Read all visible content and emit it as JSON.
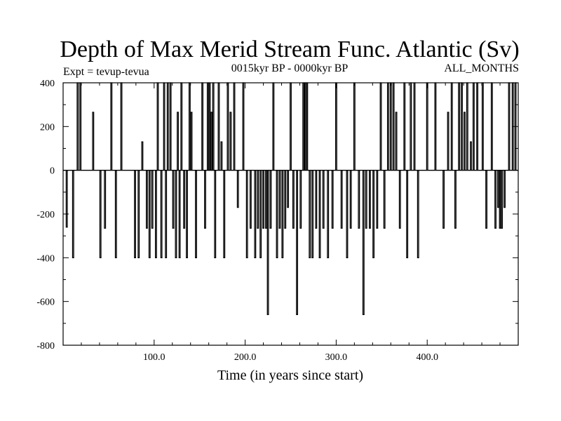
{
  "chart_data": {
    "type": "line",
    "title": "Depth of Max Merid Stream Func. Atlantic (Sv)",
    "subtitle_left": "Expt = tevup-tevua",
    "subtitle_center": "0015kyr BP - 0000kyr BP",
    "subtitle_right": "ALL_MONTHS",
    "xlabel": "Time (in years since start)",
    "ylabel": "",
    "xlim": [
      0,
      500
    ],
    "ylim": [
      -800,
      400
    ],
    "grid": false,
    "legend": "none",
    "x_ticks": [
      100,
      200,
      300,
      400
    ],
    "x_tick_labels": [
      "100.0",
      "200.0",
      "300.0",
      "400.0"
    ],
    "y_ticks": [
      400,
      200,
      0,
      -200,
      -400,
      -600,
      -800
    ],
    "y_tick_labels": [
      "400",
      "200",
      "0",
      "-200",
      "-400",
      "-600",
      "-800"
    ],
    "line_color": "#000000",
    "series": [
      {
        "spikes": [
          {
            "x": 4,
            "y": -260
          },
          {
            "x": 11,
            "y": -400
          },
          {
            "x": 16,
            "y": 400
          },
          {
            "x": 19,
            "y": 400
          },
          {
            "x": 33,
            "y": 265
          },
          {
            "x": 41,
            "y": -400
          },
          {
            "x": 46,
            "y": -265
          },
          {
            "x": 53,
            "y": 400
          },
          {
            "x": 58,
            "y": -400
          },
          {
            "x": 64,
            "y": 400
          },
          {
            "x": 79,
            "y": -400
          },
          {
            "x": 83,
            "y": -400
          },
          {
            "x": 87,
            "y": 130
          },
          {
            "x": 92,
            "y": -265
          },
          {
            "x": 95,
            "y": -400
          },
          {
            "x": 98,
            "y": -265
          },
          {
            "x": 102,
            "y": -400
          },
          {
            "x": 104,
            "y": 400
          },
          {
            "x": 108,
            "y": -400
          },
          {
            "x": 111,
            "y": 400
          },
          {
            "x": 113,
            "y": -400
          },
          {
            "x": 115,
            "y": 400
          },
          {
            "x": 118,
            "y": 400
          },
          {
            "x": 121,
            "y": -265
          },
          {
            "x": 124,
            "y": -400
          },
          {
            "x": 126,
            "y": 265
          },
          {
            "x": 128,
            "y": -400
          },
          {
            "x": 130,
            "y": 400
          },
          {
            "x": 133,
            "y": -265
          },
          {
            "x": 136,
            "y": -400
          },
          {
            "x": 139,
            "y": 400
          },
          {
            "x": 141,
            "y": 265
          },
          {
            "x": 146,
            "y": -400
          },
          {
            "x": 153,
            "y": 400
          },
          {
            "x": 156,
            "y": -265
          },
          {
            "x": 159,
            "y": 400
          },
          {
            "x": 161,
            "y": 400
          },
          {
            "x": 163,
            "y": 265
          },
          {
            "x": 165,
            "y": 400
          },
          {
            "x": 167,
            "y": -400
          },
          {
            "x": 171,
            "y": 400
          },
          {
            "x": 174,
            "y": 130
          },
          {
            "x": 177,
            "y": -400
          },
          {
            "x": 181,
            "y": 400
          },
          {
            "x": 184,
            "y": 265
          },
          {
            "x": 188,
            "y": 400
          },
          {
            "x": 192,
            "y": -170
          },
          {
            "x": 198,
            "y": 400
          },
          {
            "x": 202,
            "y": -400
          },
          {
            "x": 206,
            "y": -265
          },
          {
            "x": 211,
            "y": -400
          },
          {
            "x": 214,
            "y": -265
          },
          {
            "x": 217,
            "y": -400
          },
          {
            "x": 220,
            "y": -265
          },
          {
            "x": 223,
            "y": -265
          },
          {
            "x": 225,
            "y": -660
          },
          {
            "x": 228,
            "y": -265
          },
          {
            "x": 231,
            "y": 400
          },
          {
            "x": 235,
            "y": -400
          },
          {
            "x": 238,
            "y": -265
          },
          {
            "x": 241,
            "y": -400
          },
          {
            "x": 244,
            "y": -265
          },
          {
            "x": 247,
            "y": -170
          },
          {
            "x": 250,
            "y": 400
          },
          {
            "x": 253,
            "y": -265
          },
          {
            "x": 257,
            "y": -660
          },
          {
            "x": 261,
            "y": -265
          },
          {
            "x": 264,
            "y": 400
          },
          {
            "x": 266,
            "y": 400
          },
          {
            "x": 268,
            "y": 400
          },
          {
            "x": 271,
            "y": -400
          },
          {
            "x": 274,
            "y": -400
          },
          {
            "x": 278,
            "y": -265
          },
          {
            "x": 282,
            "y": -400
          },
          {
            "x": 286,
            "y": -265
          },
          {
            "x": 291,
            "y": -400
          },
          {
            "x": 296,
            "y": -265
          },
          {
            "x": 300,
            "y": 400
          },
          {
            "x": 306,
            "y": -265
          },
          {
            "x": 312,
            "y": -400
          },
          {
            "x": 316,
            "y": -265
          },
          {
            "x": 320,
            "y": 400
          },
          {
            "x": 325,
            "y": -265
          },
          {
            "x": 330,
            "y": -660
          },
          {
            "x": 333,
            "y": -265
          },
          {
            "x": 337,
            "y": -265
          },
          {
            "x": 341,
            "y": -400
          },
          {
            "x": 345,
            "y": -265
          },
          {
            "x": 349,
            "y": 400
          },
          {
            "x": 353,
            "y": -265
          },
          {
            "x": 357,
            "y": 400
          },
          {
            "x": 360,
            "y": 400
          },
          {
            "x": 363,
            "y": 400
          },
          {
            "x": 366,
            "y": 265
          },
          {
            "x": 370,
            "y": -265
          },
          {
            "x": 375,
            "y": 400
          },
          {
            "x": 378,
            "y": -400
          },
          {
            "x": 382,
            "y": 400
          },
          {
            "x": 386,
            "y": 400
          },
          {
            "x": 390,
            "y": -400
          },
          {
            "x": 400,
            "y": 400
          },
          {
            "x": 409,
            "y": 400
          },
          {
            "x": 418,
            "y": -265
          },
          {
            "x": 423,
            "y": 265
          },
          {
            "x": 427,
            "y": 400
          },
          {
            "x": 431,
            "y": -265
          },
          {
            "x": 435,
            "y": 400
          },
          {
            "x": 438,
            "y": 400
          },
          {
            "x": 441,
            "y": 265
          },
          {
            "x": 444,
            "y": 400
          },
          {
            "x": 448,
            "y": 130
          },
          {
            "x": 451,
            "y": 400
          },
          {
            "x": 455,
            "y": 400
          },
          {
            "x": 461,
            "y": 400
          },
          {
            "x": 465,
            "y": -265
          },
          {
            "x": 471,
            "y": 400
          },
          {
            "x": 475,
            "y": -265
          },
          {
            "x": 478,
            "y": -170
          },
          {
            "x": 480,
            "y": -265
          },
          {
            "x": 482,
            "y": -265
          },
          {
            "x": 485,
            "y": -170
          },
          {
            "x": 490,
            "y": 400
          },
          {
            "x": 494,
            "y": 400
          },
          {
            "x": 497,
            "y": 400
          }
        ]
      }
    ]
  }
}
